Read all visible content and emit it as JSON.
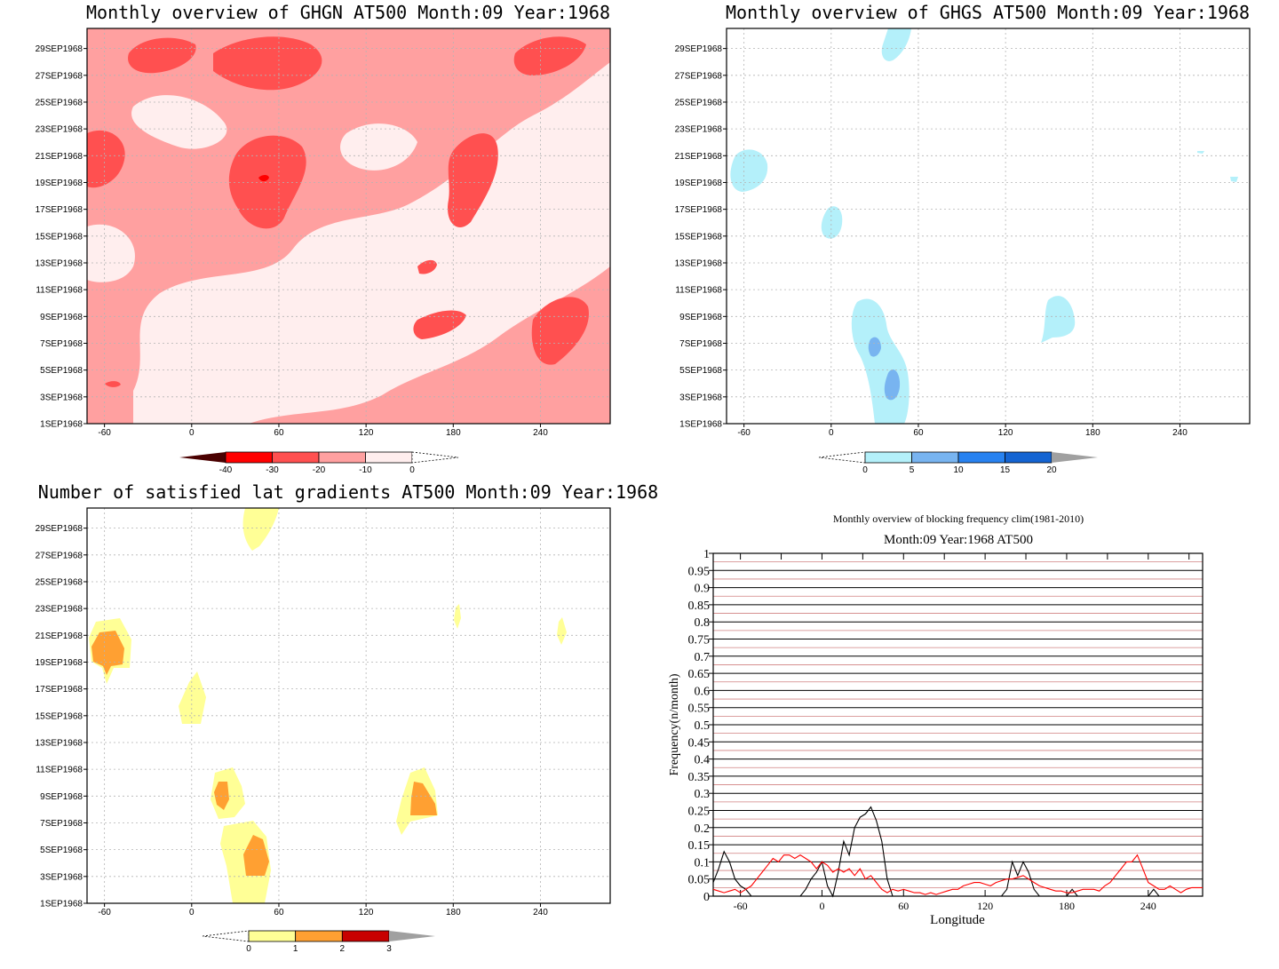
{
  "chart_data": [
    {
      "type": "heatmap",
      "title": "Monthly overview of GHGN AT500 Month:09 Year:1968",
      "xticks": [
        "-60",
        "0",
        "60",
        "120",
        "180",
        "240"
      ],
      "yticks": [
        "1SEP1968",
        "3SEP1968",
        "5SEP1968",
        "7SEP1968",
        "9SEP1968",
        "11SEP1968",
        "13SEP1968",
        "15SEP1968",
        "17SEP1968",
        "19SEP1968",
        "21SEP1968",
        "23SEP1968",
        "25SEP1968",
        "27SEP1968",
        "29SEP1968"
      ],
      "colorbar": {
        "labels": [
          "-40",
          "-30",
          "-20",
          "-10",
          "0"
        ],
        "colors": [
          "#4a0000",
          "#ff0000",
          "#ff5050",
          "#ffa0a0",
          "#ffeeee"
        ]
      }
    },
    {
      "type": "heatmap",
      "title": "Monthly overview of GHGS AT500 Month:09 Year:1968",
      "xticks": [
        "-60",
        "0",
        "60",
        "120",
        "180",
        "240"
      ],
      "yticks": [
        "1SEP1968",
        "3SEP1968",
        "5SEP1968",
        "7SEP1968",
        "9SEP1968",
        "11SEP1968",
        "13SEP1968",
        "15SEP1968",
        "17SEP1968",
        "19SEP1968",
        "21SEP1968",
        "23SEP1968",
        "25SEP1968",
        "27SEP1968",
        "29SEP1968"
      ],
      "colorbar": {
        "labels": [
          "0",
          "5",
          "10",
          "15",
          "20"
        ],
        "colors": [
          "#b4f0fa",
          "#78b4f0",
          "#2882f0",
          "#1464d2",
          "#a0a0a0"
        ]
      }
    },
    {
      "type": "heatmap",
      "title": "Number of satisfied lat gradients AT500 Month:09 Year:1968",
      "xticks": [
        "-60",
        "0",
        "60",
        "120",
        "180",
        "240"
      ],
      "yticks": [
        "1SEP1968",
        "3SEP1968",
        "5SEP1968",
        "7SEP1968",
        "9SEP1968",
        "11SEP1968",
        "13SEP1968",
        "15SEP1968",
        "17SEP1968",
        "19SEP1968",
        "21SEP1968",
        "23SEP1968",
        "25SEP1968",
        "27SEP1968",
        "29SEP1968"
      ],
      "colorbar": {
        "labels": [
          "0",
          "1",
          "2",
          "3"
        ],
        "colors": [
          "#ffff96",
          "#ffa032",
          "#c80000",
          "#a0a0a0"
        ]
      }
    },
    {
      "type": "line",
      "title": "Monthly overview of blocking frequency clim(1981-2010)",
      "subtitle": "Month:09 Year:1968  AT500",
      "xlabel": "Longitude",
      "ylabel": "Frequency(n/month)",
      "xticks": [
        "-60",
        "0",
        "60",
        "120",
        "180",
        "240"
      ],
      "yticks": [
        "0",
        "0.05",
        "0.1",
        "0.15",
        "0.2",
        "0.25",
        "0.3",
        "0.35",
        "0.4",
        "0.45",
        "0.5",
        "0.55",
        "0.6",
        "0.65",
        "0.7",
        "0.75",
        "0.8",
        "0.85",
        "0.9",
        "0.95",
        "1"
      ],
      "xlim": [
        -80,
        280
      ],
      "ylim": [
        0,
        1
      ],
      "series": [
        {
          "color": "#000000",
          "x": [
            -80,
            -76,
            -72,
            -68,
            -64,
            -60,
            -56,
            -52,
            -48,
            -44,
            -40,
            -36,
            -32,
            -28,
            -24,
            -20,
            -16,
            -12,
            -8,
            -4,
            0,
            4,
            8,
            12,
            16,
            20,
            24,
            28,
            32,
            36,
            40,
            44,
            48,
            52,
            56,
            60,
            64,
            68,
            72,
            76,
            80,
            84,
            88,
            92,
            96,
            100,
            104,
            108,
            112,
            116,
            120,
            124,
            128,
            132,
            136,
            140,
            144,
            148,
            152,
            156,
            160,
            164,
            168,
            172,
            176,
            180,
            184,
            188,
            192,
            196,
            200,
            204,
            208,
            212,
            216,
            220,
            224,
            228,
            232,
            236,
            240,
            244,
            248,
            252,
            256,
            260,
            264,
            268,
            272,
            276,
            280
          ],
          "y": [
            0.04,
            0.08,
            0.13,
            0.1,
            0.05,
            0.03,
            0.02,
            0,
            0,
            0,
            0,
            0,
            0,
            0,
            0,
            0,
            0,
            0.02,
            0.05,
            0.07,
            0.1,
            0.03,
            0,
            0.07,
            0.16,
            0.12,
            0.2,
            0.23,
            0.24,
            0.26,
            0.22,
            0.16,
            0.05,
            0,
            0,
            0,
            0,
            0,
            0,
            0,
            0,
            0,
            0,
            0,
            0,
            0,
            0,
            0,
            0,
            0,
            0,
            0,
            0,
            0,
            0.02,
            0.1,
            0.06,
            0.1,
            0.07,
            0.02,
            0,
            0,
            0,
            0,
            0,
            0,
            0.02,
            0,
            0,
            0,
            0,
            0,
            0,
            0,
            0,
            0,
            0,
            0,
            0,
            0,
            0,
            0.02,
            0,
            0,
            0,
            0,
            0,
            0,
            0,
            0,
            0
          ]
        },
        {
          "color": "#ff0000",
          "x": [
            -80,
            -76,
            -72,
            -68,
            -64,
            -60,
            -56,
            -52,
            -48,
            -44,
            -40,
            -36,
            -32,
            -28,
            -24,
            -20,
            -16,
            -12,
            -8,
            -4,
            0,
            4,
            8,
            12,
            16,
            20,
            24,
            28,
            32,
            36,
            40,
            44,
            48,
            52,
            56,
            60,
            64,
            68,
            72,
            76,
            80,
            84,
            88,
            92,
            96,
            100,
            104,
            108,
            112,
            116,
            120,
            124,
            128,
            132,
            136,
            140,
            144,
            148,
            152,
            156,
            160,
            164,
            168,
            172,
            176,
            180,
            184,
            188,
            192,
            196,
            200,
            204,
            208,
            212,
            216,
            220,
            224,
            228,
            232,
            236,
            240,
            244,
            248,
            252,
            256,
            260,
            264,
            268,
            272,
            276,
            280
          ],
          "y": [
            0.02,
            0.015,
            0.01,
            0.015,
            0.02,
            0.01,
            0.02,
            0.03,
            0.05,
            0.07,
            0.09,
            0.11,
            0.1,
            0.12,
            0.12,
            0.11,
            0.12,
            0.11,
            0.1,
            0.08,
            0.1,
            0.09,
            0.07,
            0.08,
            0.07,
            0.08,
            0.06,
            0.08,
            0.05,
            0.06,
            0.04,
            0.02,
            0.01,
            0.02,
            0.015,
            0.02,
            0.015,
            0.01,
            0.01,
            0.005,
            0.01,
            0.005,
            0.01,
            0.015,
            0.02,
            0.02,
            0.03,
            0.035,
            0.04,
            0.04,
            0.035,
            0.03,
            0.04,
            0.045,
            0.05,
            0.05,
            0.055,
            0.06,
            0.05,
            0.04,
            0.03,
            0.025,
            0.02,
            0.015,
            0.015,
            0.01,
            0.01,
            0.015,
            0.02,
            0.02,
            0.02,
            0.015,
            0.03,
            0.04,
            0.06,
            0.08,
            0.1,
            0.1,
            0.12,
            0.08,
            0.04,
            0.03,
            0.02,
            0.02,
            0.03,
            0.02,
            0.01,
            0.02,
            0.025,
            0.025,
            0.025
          ]
        }
      ]
    }
  ]
}
